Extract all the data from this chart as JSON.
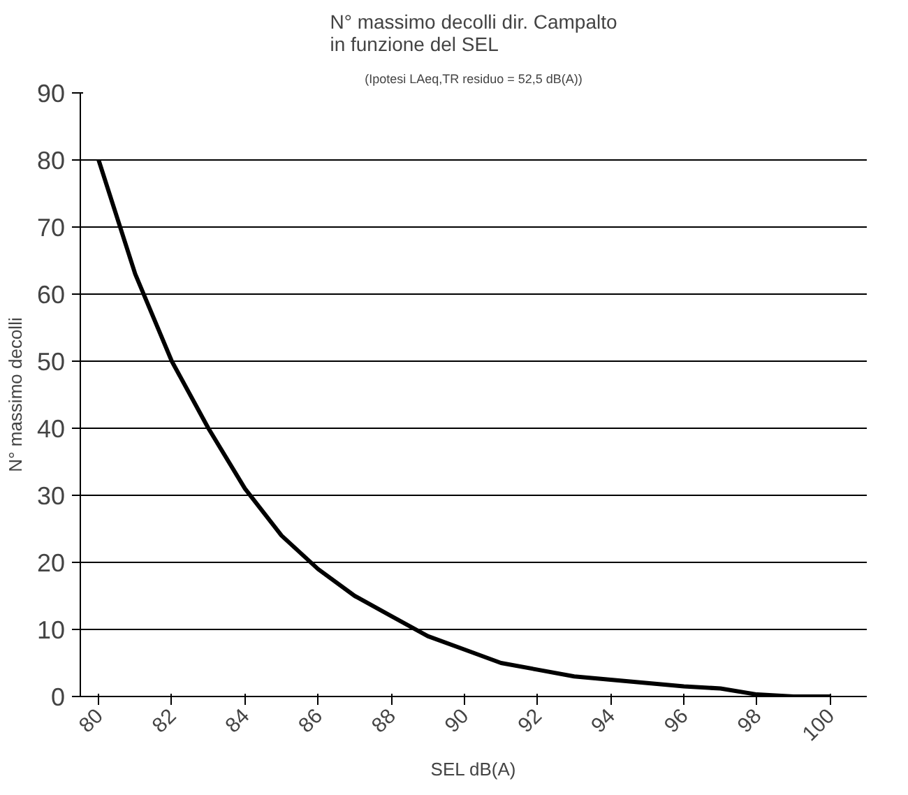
{
  "chart_data": {
    "type": "line",
    "title": "N° massimo decolli dir. Campalto\nin funzione del SEL",
    "subtitle": "(Ipotesi LAeq,TR residuo = 52,5 dB(A))",
    "xlabel": "SEL dB(A)",
    "ylabel": "N° massimo decolli",
    "x": [
      80,
      81,
      82,
      83,
      84,
      85,
      86,
      87,
      88,
      89,
      90,
      91,
      92,
      93,
      94,
      95,
      96,
      97,
      98,
      99,
      100
    ],
    "series": [
      {
        "color": "#000000",
        "values": [
          80,
          63,
          50,
          40,
          31,
          24,
          19,
          15,
          12,
          9,
          7,
          5,
          4,
          3,
          2.5,
          2,
          1.5,
          1.2,
          0.3,
          0,
          0
        ]
      }
    ],
    "xlim": [
      79.5,
      101
    ],
    "xticks": [
      80,
      82,
      84,
      86,
      88,
      90,
      92,
      94,
      96,
      98,
      100
    ],
    "ylim": [
      0,
      90
    ],
    "yticks": [
      0,
      10,
      20,
      30,
      40,
      50,
      60,
      70,
      80,
      90
    ],
    "grid": "y",
    "marker": "none",
    "line_style": "solid"
  }
}
